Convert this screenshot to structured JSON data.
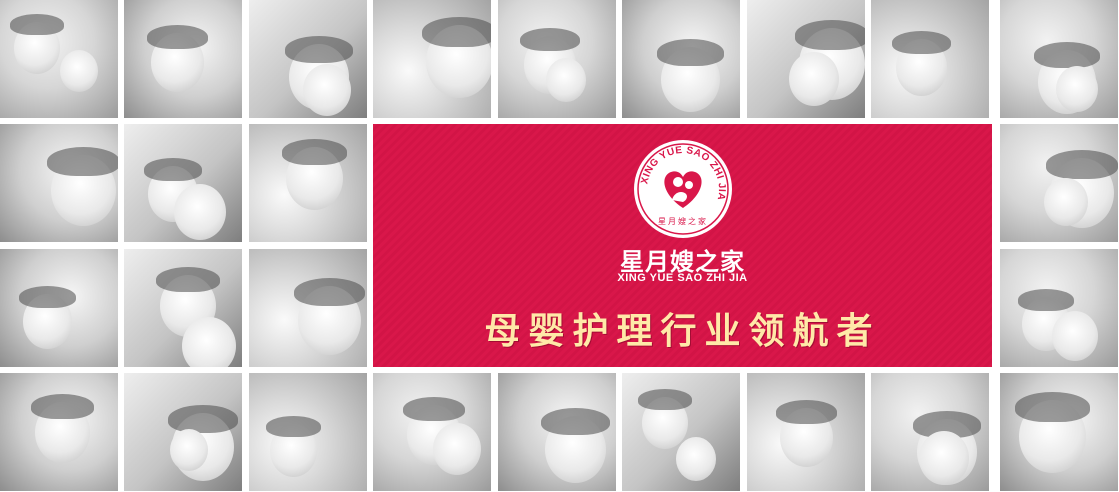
{
  "brand": {
    "name_cn": "星月嫂之家",
    "name_en": "XING YUE SAO ZHI JIA",
    "logo_ring_text": "XING YUE SAO ZHI JIA",
    "logo_inner_text": "星月嫂之家",
    "slogan": "母婴护理行业领航者"
  },
  "colors": {
    "banner_red": "#d9174a",
    "slogan_gold": "#ffe9a8",
    "logo_white": "#ffffff"
  },
  "photos": [
    {
      "name": "mother-kissing-baby-photo"
    },
    {
      "name": "mother-and-baby-photo"
    },
    {
      "name": "father-and-baby-photo"
    },
    {
      "name": "smiling-baby-lying-photo"
    },
    {
      "name": "mother-and-baby-photo"
    },
    {
      "name": "mother-and-toddler-photo"
    },
    {
      "name": "smiling-baby-closeup-photo"
    },
    {
      "name": "mother-and-baby-photo"
    },
    {
      "name": "baby-portrait-photo"
    },
    {
      "name": "laughing-baby-photo"
    },
    {
      "name": "father-and-baby-photo"
    },
    {
      "name": "mother-kissing-baby-photo"
    },
    {
      "name": "mother-nursing-baby-photo"
    },
    {
      "name": "mother-and-baby-photo"
    },
    {
      "name": "mother-and-baby-photo"
    },
    {
      "name": "mother-and-baby-photo"
    },
    {
      "name": "mother-and-baby-photo"
    },
    {
      "name": "mother-and-baby-photo"
    },
    {
      "name": "mother-and-baby-photo"
    },
    {
      "name": "toddler-girl-photo"
    },
    {
      "name": "baby-with-mother-photo"
    },
    {
      "name": "baby-with-mother-photo"
    },
    {
      "name": "baby-and-adult-photo"
    },
    {
      "name": "father-and-baby-photo"
    },
    {
      "name": "laughing-baby-photo"
    },
    {
      "name": "baby-with-mother-photo"
    }
  ]
}
